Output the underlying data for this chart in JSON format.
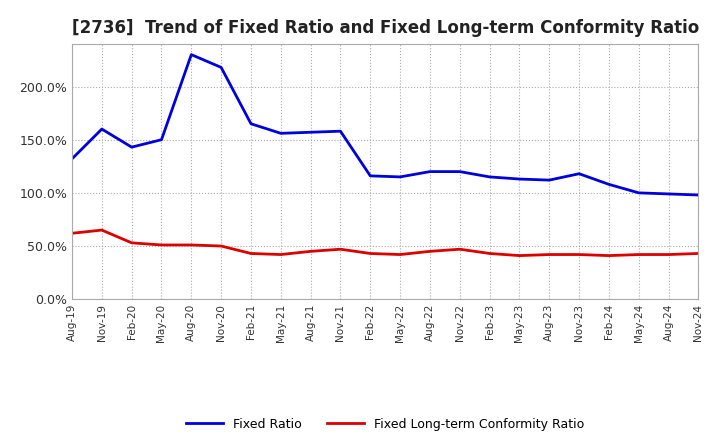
{
  "title": "[2736]  Trend of Fixed Ratio and Fixed Long-term Conformity Ratio",
  "title_fontsize": 12,
  "x_labels": [
    "Aug-19",
    "Nov-19",
    "Feb-20",
    "May-20",
    "Aug-20",
    "Nov-20",
    "Feb-21",
    "May-21",
    "Aug-21",
    "Nov-21",
    "Feb-22",
    "May-22",
    "Aug-22",
    "Nov-22",
    "Feb-23",
    "May-23",
    "Aug-23",
    "Nov-23",
    "Feb-24",
    "May-24",
    "Aug-24",
    "Nov-24"
  ],
  "fixed_ratio": [
    132,
    160,
    143,
    150,
    230,
    218,
    165,
    156,
    157,
    158,
    116,
    115,
    120,
    120,
    115,
    113,
    112,
    118,
    108,
    100,
    99,
    98
  ],
  "fixed_lt_ratio": [
    62,
    65,
    53,
    51,
    51,
    50,
    43,
    42,
    45,
    47,
    43,
    42,
    45,
    47,
    43,
    41,
    42,
    42,
    41,
    42,
    42,
    43
  ],
  "fixed_ratio_color": "#0000dd",
  "fixed_lt_ratio_color": "#dd0000",
  "ylim": [
    0,
    240
  ],
  "yticks": [
    0,
    50,
    100,
    150,
    200
  ],
  "ytick_labels": [
    "0.0%",
    "50.0%",
    "100.0%",
    "150.0%",
    "200.0%"
  ],
  "background_color": "#ffffff",
  "grid_color": "#aaaaaa",
  "legend_fixed": "Fixed Ratio",
  "legend_fixed_lt": "Fixed Long-term Conformity Ratio"
}
